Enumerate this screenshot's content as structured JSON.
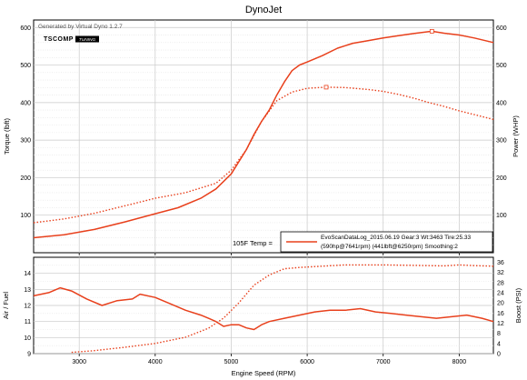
{
  "title": "DynoJet",
  "generated_by": "Generated by Virtual Dyno 1.2.7",
  "logo_text": "TSCOMP",
  "logo_badge": "TUNING",
  "temp_label": "105F Temp =",
  "legend": {
    "line1": "EvoScanDataLog_2015.06.19 Gear:3 Wt:3463 Tire:25.33",
    "line2": "(590hp@7641rpm) (441lbft@6250rpm) Smoothing:2"
  },
  "chart_data": [
    {
      "type": "line",
      "title": "DynoJet",
      "xlabel": "",
      "ylabel": "Torque (lbft)",
      "y2label": "Power (WHP)",
      "xlim": [
        2400,
        8450
      ],
      "ylim": [
        0,
        620
      ],
      "x_ticks": [
        3000,
        4000,
        5000,
        6000,
        7000,
        8000
      ],
      "y_ticks": [
        100,
        200,
        300,
        400,
        500,
        600
      ],
      "y2_ticks": [
        100,
        200,
        300,
        400,
        500,
        600
      ],
      "grid": true,
      "color": "#e8401c",
      "series": [
        {
          "style": "solid",
          "axis": "right",
          "x": [
            2400,
            2800,
            3200,
            3600,
            4000,
            4300,
            4600,
            4800,
            5000,
            5200,
            5300,
            5400,
            5500,
            5600,
            5700,
            5800,
            5900,
            6000,
            6200,
            6400,
            6600,
            6800,
            7000,
            7200,
            7400,
            7641,
            7800,
            8000,
            8200,
            8450
          ],
          "y": [
            40,
            48,
            62,
            82,
            104,
            120,
            145,
            170,
            210,
            275,
            315,
            350,
            380,
            420,
            455,
            485,
            500,
            508,
            525,
            545,
            558,
            565,
            572,
            578,
            584,
            590,
            585,
            580,
            572,
            560
          ]
        },
        {
          "style": "dotted",
          "axis": "left",
          "x": [
            2400,
            2800,
            3200,
            3600,
            4000,
            4400,
            4800,
            5000,
            5200,
            5400,
            5600,
            5800,
            6000,
            6250,
            6500,
            6800,
            7000,
            7200,
            7400,
            7600,
            7800,
            8000,
            8200,
            8450
          ],
          "y": [
            80,
            90,
            105,
            125,
            145,
            160,
            185,
            220,
            275,
            350,
            405,
            428,
            438,
            441,
            440,
            435,
            430,
            422,
            412,
            400,
            390,
            378,
            368,
            355
          ]
        }
      ],
      "peak_markers": [
        {
          "x": 7641,
          "y": 590,
          "axis": "right"
        },
        {
          "x": 6250,
          "y": 441,
          "axis": "left"
        }
      ]
    },
    {
      "type": "line",
      "xlabel": "Engine Speed (RPM)",
      "ylabel": "Air / Fuel",
      "y2label": "Boost (PSI)",
      "xlim": [
        2400,
        8450
      ],
      "ylim": [
        9,
        15
      ],
      "y2lim": [
        0,
        38
      ],
      "x_ticks": [
        3000,
        4000,
        5000,
        6000,
        7000,
        8000
      ],
      "y_ticks": [
        9,
        10,
        11,
        12,
        13,
        14
      ],
      "y2_ticks": [
        0,
        4,
        8,
        12,
        16,
        20,
        24,
        28,
        32,
        36
      ],
      "grid": true,
      "color": "#e8401c",
      "series": [
        {
          "style": "solid",
          "axis": "left",
          "x": [
            2400,
            2600,
            2750,
            2900,
            3100,
            3300,
            3500,
            3700,
            3800,
            4000,
            4200,
            4400,
            4600,
            4700,
            4800,
            4900,
            5000,
            5100,
            5200,
            5300,
            5400,
            5500,
            5700,
            5900,
            6100,
            6300,
            6500,
            6700,
            6900,
            7100,
            7300,
            7500,
            7700,
            7900,
            8100,
            8300,
            8450
          ],
          "y": [
            12.6,
            12.8,
            13.1,
            12.9,
            12.4,
            12.0,
            12.3,
            12.4,
            12.7,
            12.5,
            12.1,
            11.7,
            11.4,
            11.2,
            11.0,
            10.7,
            10.8,
            10.8,
            10.6,
            10.5,
            10.8,
            11.0,
            11.2,
            11.4,
            11.6,
            11.7,
            11.7,
            11.8,
            11.6,
            11.5,
            11.4,
            11.3,
            11.2,
            11.3,
            11.4,
            11.2,
            11.0
          ]
        },
        {
          "style": "dotted",
          "axis": "right",
          "x": [
            2900,
            3200,
            3600,
            4000,
            4400,
            4700,
            4900,
            5100,
            5300,
            5500,
            5700,
            5900,
            6200,
            6500,
            7000,
            7400,
            7800,
            8000,
            8200,
            8450
          ],
          "y": [
            0.5,
            1.2,
            2.5,
            4.0,
            6.5,
            10.0,
            14.0,
            20.0,
            27.0,
            31.0,
            33.5,
            34.0,
            34.5,
            35.0,
            35.0,
            34.8,
            34.6,
            35.0,
            34.7,
            34.5
          ]
        }
      ]
    }
  ]
}
